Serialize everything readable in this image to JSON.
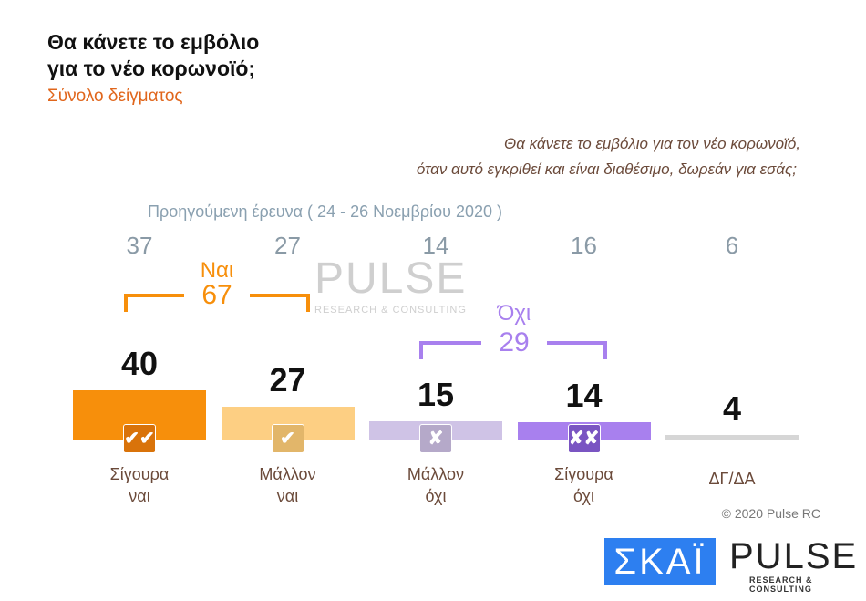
{
  "title": [
    "Θα κάνετε το εμβόλιο",
    "για το νέο κορωνοϊό;"
  ],
  "subtitle": "Σύνολο δείγματος",
  "question": [
    "Θα κάνετε το εμβόλιο για τον νέο κορωνοϊό,",
    "όταν αυτό εγκριθεί και είναι διαθέσιμο, δωρεάν για εσάς;"
  ],
  "previous_label": "Προηγούμενη έρευνα  ( 24 - 26  Νοεμβρίου  2020 )",
  "chart_data": {
    "type": "bar",
    "categories": [
      [
        "Σίγουρα",
        "ναι"
      ],
      [
        "Μάλλον",
        "ναι"
      ],
      [
        "Μάλλον",
        "όχι"
      ],
      [
        "Σίγουρα",
        "όχι"
      ],
      [
        "ΔΓ/ΔΑ",
        ""
      ]
    ],
    "values": [
      40,
      27,
      15,
      14,
      4
    ],
    "previous_values": [
      37,
      27,
      14,
      16,
      6
    ],
    "colors": [
      "#f78f0b",
      "#fdcf83",
      "#cfc3e6",
      "#a880ee",
      "#d6d6d6"
    ],
    "icons": [
      "double-check",
      "check",
      "cross",
      "double-cross",
      null
    ],
    "icon_glyphs": [
      "✔✔",
      "✔",
      "✘",
      "✘✘",
      ""
    ],
    "icon_colors": [
      "#d9730a",
      "#e2b66a",
      "#b5a9c9",
      "#7a55c2",
      ""
    ],
    "groups": [
      {
        "label": "Ναι",
        "value": "67",
        "color": "#f78f0b"
      },
      {
        "label": "Όχι",
        "value": "29",
        "color": "#a880ee"
      }
    ]
  },
  "watermark": {
    "name": "PULSE",
    "sub": "RESEARCH & CONSULTING"
  },
  "copyright": "© 2020 Pulse RC",
  "logos": {
    "skai": "ΣΚΑΪ",
    "pulse": "PULSE",
    "pulse_sub": "RESEARCH & CONSULTING"
  }
}
